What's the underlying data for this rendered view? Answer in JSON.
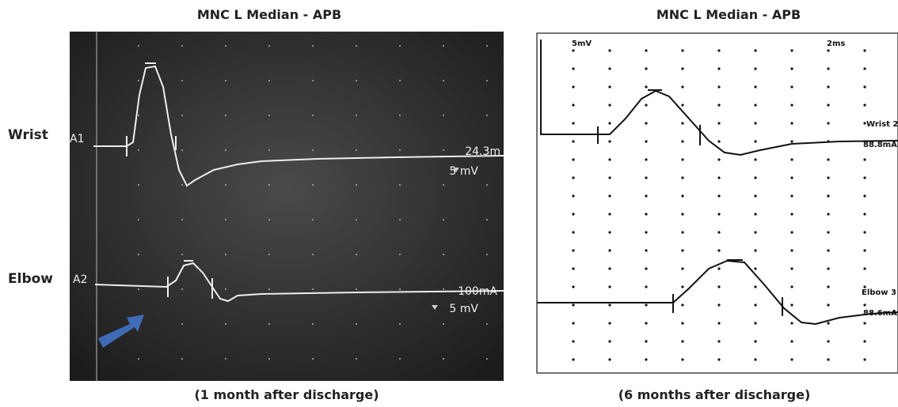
{
  "left": {
    "title": "MNC L Median - APB",
    "caption": "(1 month after discharge)",
    "rows": [
      {
        "label": "Wrist",
        "channel": "A1",
        "reading": "24.3m",
        "gain": "5 mV"
      },
      {
        "label": "Elbow",
        "channel": "A2",
        "reading": "100mA",
        "gain": "5 mV"
      }
    ]
  },
  "right": {
    "title": "MNC L Median - APB",
    "caption": "(6 months after discharge)",
    "gain": "5mV",
    "sweep": "2ms",
    "rows": [
      {
        "label": "Wrist 2",
        "reading": "88.8mA"
      },
      {
        "label": "Elbow 3",
        "reading": "88.6mA"
      }
    ]
  }
}
